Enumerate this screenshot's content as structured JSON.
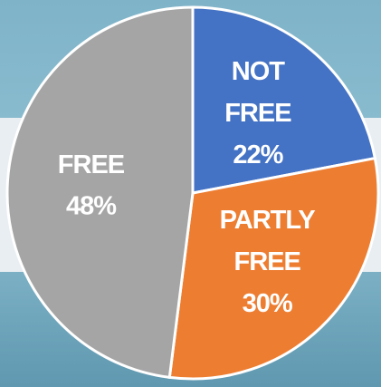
{
  "chart_data": {
    "type": "pie",
    "categories": [
      "NOT FREE",
      "PARTLY FREE",
      "FREE"
    ],
    "values": [
      22,
      30,
      48
    ],
    "value_labels": [
      "22%",
      "30%",
      "48%"
    ],
    "colors": [
      "#4472c4",
      "#ed7d31",
      "#a5a5a5"
    ]
  }
}
